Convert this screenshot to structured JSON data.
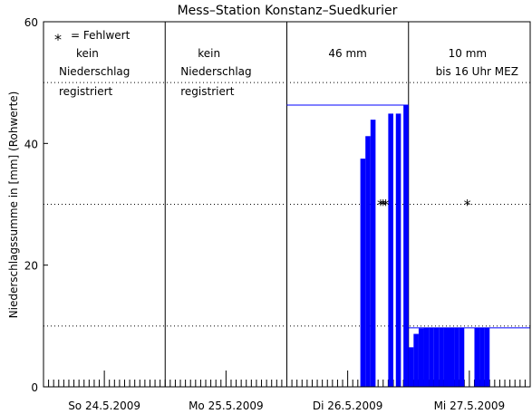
{
  "chart_data": {
    "type": "bar",
    "title": "Mess–Station Konstanz–Suedkurier",
    "ylabel": "Niederschlagssumme in [mm] (Rohwerte)",
    "xlabel": "",
    "ylim": [
      0,
      60
    ],
    "xlim": [
      0,
      96
    ],
    "yticks": [
      0,
      20,
      40,
      60
    ],
    "y_dotted_lines": [
      10,
      30,
      50
    ],
    "y_dotted_upper_limit": 60,
    "day_labels": [
      "So 24.5.2009",
      "Mo 25.5.2009",
      "Di 26.5.2009",
      "Mi 27.5.2009"
    ],
    "day_boundaries": [
      24,
      48,
      72
    ],
    "x_unit": "hours since the start of the first day shown",
    "legend": {
      "symbol": "*",
      "label": "= Fehlwert"
    },
    "day_annotations": [
      {
        "day": 0,
        "lines": [
          "kein",
          "Niederschlag",
          "registriert"
        ]
      },
      {
        "day": 1,
        "lines": [
          "kein",
          "Niederschlag",
          "registriert"
        ]
      },
      {
        "day": 2,
        "lines": [
          "46 mm"
        ]
      },
      {
        "day": 3,
        "lines": [
          "10 mm",
          "bis 16 Uhr MEZ"
        ]
      }
    ],
    "daily_totals": [
      {
        "x_start": 48,
        "x_end": 72,
        "value": 46.3
      },
      {
        "x_start": 72,
        "x_end": 96,
        "value": 9.7
      }
    ],
    "series": [
      {
        "bars": [
          {
            "x": 63.0,
            "y": 37.5
          },
          {
            "x": 64.0,
            "y": 41.2
          },
          {
            "x": 65.0,
            "y": 43.9
          },
          {
            "x": 68.5,
            "y": 44.9
          },
          {
            "x": 70.0,
            "y": 44.9
          },
          {
            "x": 71.5,
            "y": 46.3
          },
          {
            "x": 72.5,
            "y": 6.5
          },
          {
            "x": 73.5,
            "y": 8.7
          },
          {
            "x": 74.5,
            "y": 9.6
          },
          {
            "x": 75.5,
            "y": 9.7
          },
          {
            "x": 76.5,
            "y": 9.7
          },
          {
            "x": 77.5,
            "y": 9.7
          },
          {
            "x": 78.5,
            "y": 9.7
          },
          {
            "x": 79.5,
            "y": 9.7
          },
          {
            "x": 80.5,
            "y": 9.7
          },
          {
            "x": 81.5,
            "y": 9.7
          },
          {
            "x": 82.5,
            "y": 9.7
          },
          {
            "x": 85.5,
            "y": 9.7
          },
          {
            "x": 86.5,
            "y": 9.7
          },
          {
            "x": 87.5,
            "y": 9.7
          }
        ]
      }
    ],
    "missing_values": [
      {
        "x": 66.5,
        "y": 30
      },
      {
        "x": 67.0,
        "y": 30
      },
      {
        "x": 67.5,
        "y": 30
      },
      {
        "x": 83.6,
        "y": 30
      }
    ],
    "colors": {
      "bars": "#0000ff",
      "daily_total_line": "#0000ff",
      "axes": "#000000"
    },
    "grid": "dotted horizontal lines at 10, 30, 50 plus solid day separators"
  }
}
